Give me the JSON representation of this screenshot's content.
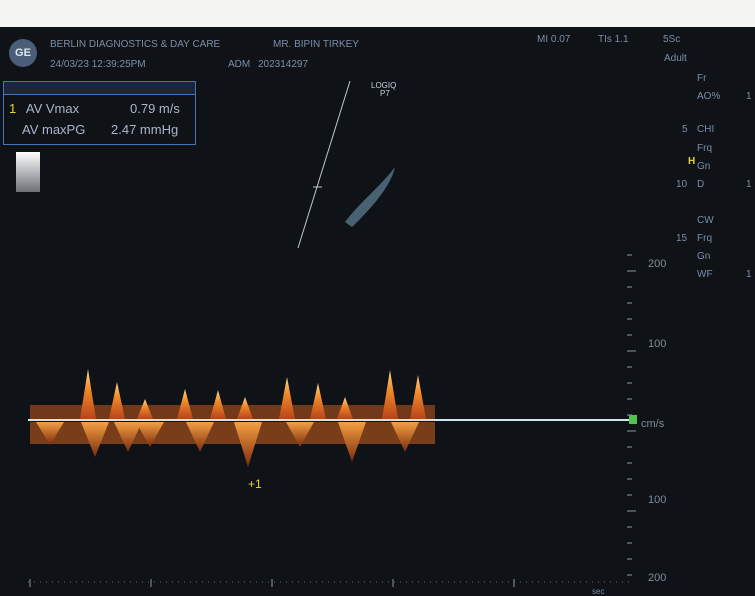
{
  "header": {
    "logo": "GE",
    "institution": "BERLIN DIAGNOSTICS & DAY CARE",
    "patient": "MR. BIPIN TIRKEY",
    "datetime": "24/03/23 12:39:25PM",
    "adm_label": "ADM",
    "adm_value": "202314297",
    "mi": "MI 0.07",
    "tis": "TIs 1.1",
    "probe": "5Sc",
    "mode": "Adult"
  },
  "measurement": {
    "index": "1",
    "rows": [
      {
        "label": "AV Vmax",
        "value": "0.79 m/s"
      },
      {
        "label": "AV maxPG",
        "value": "2.47 mmHg"
      }
    ]
  },
  "image_label": {
    "line1": "LOGIQ",
    "line2": "P7"
  },
  "right_params": [
    "Fr",
    "AO%",
    "CHI",
    "Frq",
    "Gn",
    "D",
    "CW",
    "Frq",
    "Gn",
    "WF"
  ],
  "right_param_values": [
    "",
    "1",
    "",
    "",
    "",
    "1",
    "",
    "",
    "",
    "1"
  ],
  "depth_marks": [
    "5",
    "10",
    "15"
  ],
  "velocity_scale": {
    "labels": [
      "200",
      "100",
      "cm/s",
      "100",
      "200"
    ],
    "unit": "cm/s"
  },
  "time_scale_label": "sec",
  "colors": {
    "background": "#0f1318",
    "baseline": "#cfe6f2",
    "doppler": "#f08a2a",
    "measure_box": "#3f77b6",
    "caliper": "#e8d22a",
    "marker": "#52c24a"
  },
  "caliper_mark": "+1"
}
